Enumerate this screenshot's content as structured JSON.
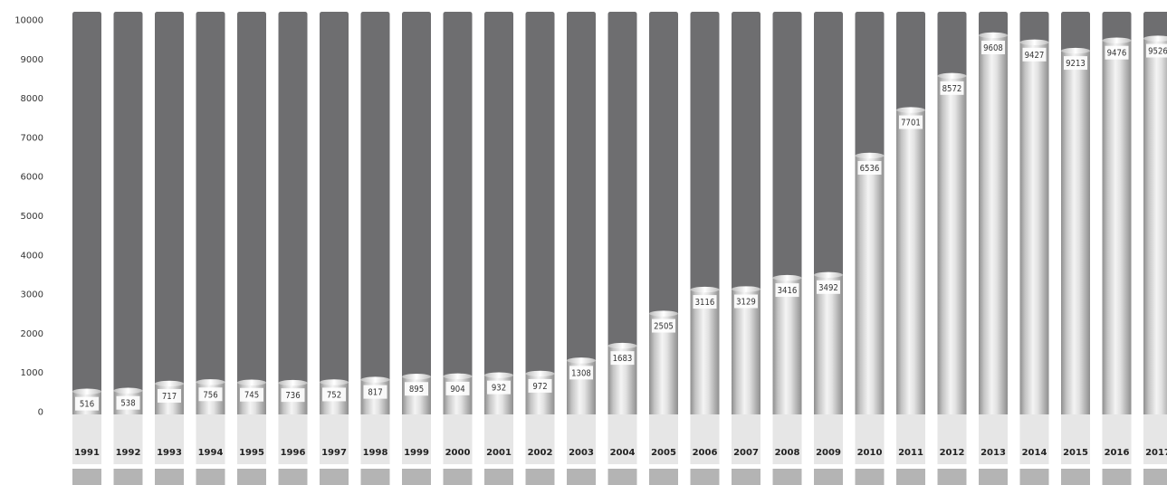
{
  "chart_data": {
    "type": "bar",
    "categories": [
      "1991",
      "1992",
      "1993",
      "1994",
      "1995",
      "1996",
      "1997",
      "1998",
      "1999",
      "2000",
      "2001",
      "2002",
      "2003",
      "2004",
      "2005",
      "2006",
      "2007",
      "2008",
      "2009",
      "2010",
      "2011",
      "2012",
      "2013",
      "2014",
      "2015",
      "2016",
      "2017"
    ],
    "values": [
      516,
      538,
      717,
      756,
      745,
      736,
      752,
      817,
      895,
      904,
      932,
      972,
      1308,
      1683,
      2505,
      3116,
      3129,
      3416,
      3492,
      6536,
      7701,
      8572,
      9608,
      9427,
      9213,
      9476,
      9526
    ],
    "data_labels": [
      "516",
      "538",
      "717",
      "756",
      "745",
      "736",
      "752",
      "817",
      "895",
      "904",
      "932",
      "972",
      "1308",
      "1683",
      "2505",
      "3116",
      "3129",
      "3416",
      "3492",
      "6536",
      "7701",
      "8572",
      "9608",
      "9427",
      "9213",
      "9476",
      "9526"
    ],
    "yticks": [
      "0",
      "1000",
      "2000",
      "3000",
      "4000",
      "5000",
      "6000",
      "7000",
      "8000",
      "9000",
      "10000"
    ],
    "ylim": [
      0,
      10000
    ],
    "title": "",
    "xlabel": "",
    "ylabel": "",
    "grid": false,
    "colors": {
      "track": "#6e6e70",
      "bar_light": "#f2f2f2",
      "bar_mid": "#c4c4c4",
      "bar_dark": "#8e8e8e",
      "label_box": "#ffffff",
      "base_band": "#e6e6e6",
      "footer_block": "#b4b4b4"
    }
  }
}
